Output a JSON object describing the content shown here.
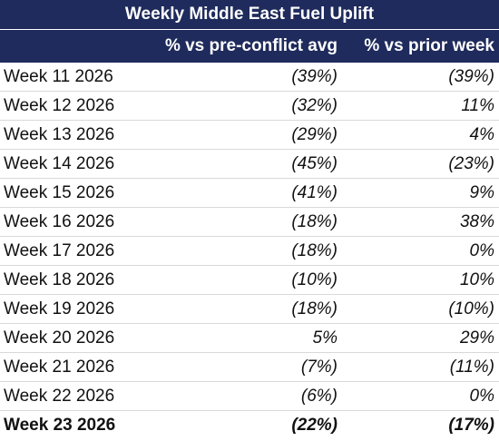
{
  "table": {
    "title": "Weekly Middle East Fuel Uplift",
    "headers": [
      "% vs pre-conflict avg",
      "% vs prior week"
    ],
    "rows": [
      [
        "Week 11 2026",
        "(39%)",
        "(39%)"
      ],
      [
        "Week 12 2026",
        "(32%)",
        "11%"
      ],
      [
        "Week 13 2026",
        "(29%)",
        "4%"
      ],
      [
        "Week 14 2026",
        "(45%)",
        "(23%)"
      ],
      [
        "Week 15 2026",
        "(41%)",
        "9%"
      ],
      [
        "Week 16 2026",
        "(18%)",
        "38%"
      ],
      [
        "Week 17 2026",
        "(18%)",
        "0%"
      ],
      [
        "Week 18 2026",
        "(10%)",
        "10%"
      ],
      [
        "Week 19 2026",
        "(18%)",
        "(10%)"
      ],
      [
        "Week 20 2026",
        "5%",
        "29%"
      ],
      [
        "Week 21 2026",
        "(7%)",
        "(11%)"
      ],
      [
        "Week 22 2026",
        "(6%)",
        "0%"
      ],
      [
        "Week 23 2026",
        "(22%)",
        "(17%)"
      ]
    ]
  }
}
